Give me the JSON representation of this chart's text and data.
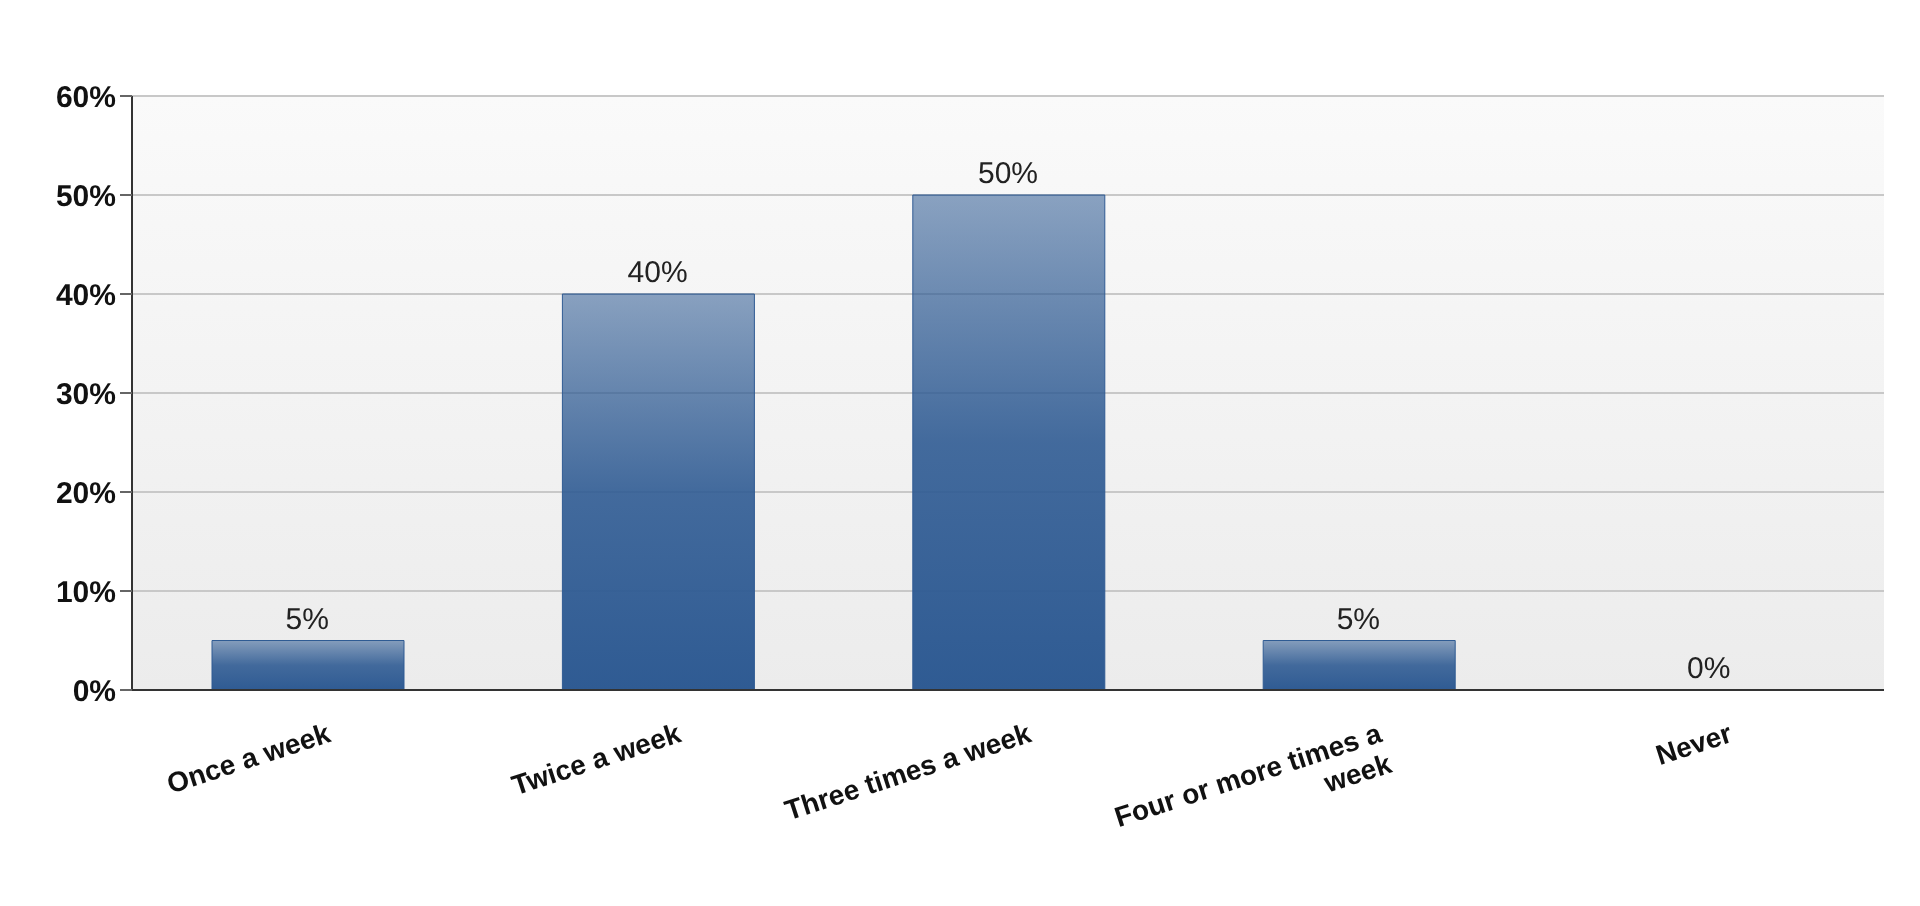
{
  "chart_data": {
    "type": "bar",
    "categories": [
      "Once a week",
      "Twice a week",
      "Three times a week",
      "Four or more times a week",
      "Never"
    ],
    "values": [
      5,
      40,
      50,
      5,
      0
    ],
    "value_labels": [
      "5%",
      "40%",
      "50%",
      "5%",
      "0%"
    ],
    "color": "#2f5b93",
    "ylim": [
      0,
      60
    ],
    "yticks": [
      {
        "value": 0,
        "label": "0%"
      },
      {
        "value": 10,
        "label": "10%"
      },
      {
        "value": 20,
        "label": "20%"
      },
      {
        "value": 30,
        "label": "30%"
      },
      {
        "value": 40,
        "label": "40%"
      },
      {
        "value": 50,
        "label": "50%"
      },
      {
        "value": 60,
        "label": "60%"
      }
    ],
    "grid": "y"
  }
}
